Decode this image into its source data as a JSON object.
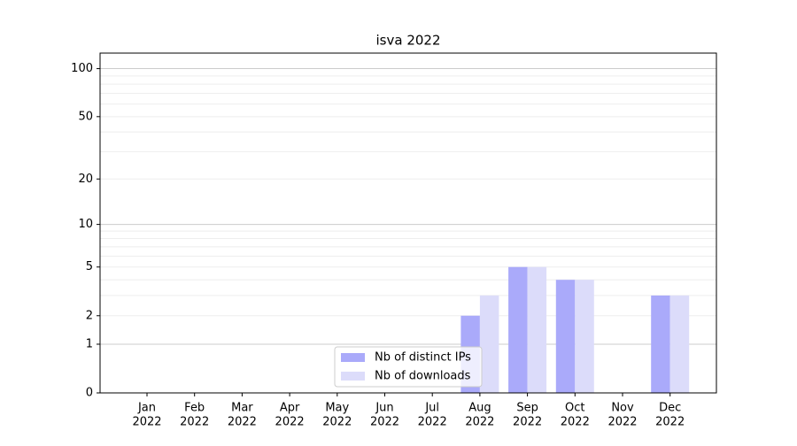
{
  "chart_data": {
    "type": "bar",
    "title": "isva 2022",
    "categories": [
      [
        "Jan",
        "2022"
      ],
      [
        "Feb",
        "2022"
      ],
      [
        "Mar",
        "2022"
      ],
      [
        "Apr",
        "2022"
      ],
      [
        "May",
        "2022"
      ],
      [
        "Jun",
        "2022"
      ],
      [
        "Jul",
        "2022"
      ],
      [
        "Aug",
        "2022"
      ],
      [
        "Sep",
        "2022"
      ],
      [
        "Oct",
        "2022"
      ],
      [
        "Nov",
        "2022"
      ],
      [
        "Dec",
        "2022"
      ]
    ],
    "series": [
      {
        "name": "Nb of distinct IPs",
        "color": "#aaaafa",
        "values": [
          0,
          0,
          0,
          0,
          0,
          0,
          0,
          2,
          5,
          4,
          0,
          3
        ]
      },
      {
        "name": "Nb of downloads",
        "color": "#dcdcfa",
        "values": [
          0,
          0,
          0,
          0,
          0,
          0,
          0,
          3,
          5,
          4,
          0,
          3
        ]
      }
    ],
    "yscale": "log1p",
    "ylim": [
      0,
      125
    ],
    "yticks": [
      0,
      1,
      2,
      5,
      10,
      20,
      50,
      100
    ],
    "ymajorgrid": [
      1,
      10,
      100
    ],
    "yminorgrid": [
      2,
      3,
      4,
      5,
      6,
      7,
      8,
      9,
      20,
      30,
      40,
      50,
      60,
      70,
      80,
      90
    ],
    "legend": "lower center"
  }
}
